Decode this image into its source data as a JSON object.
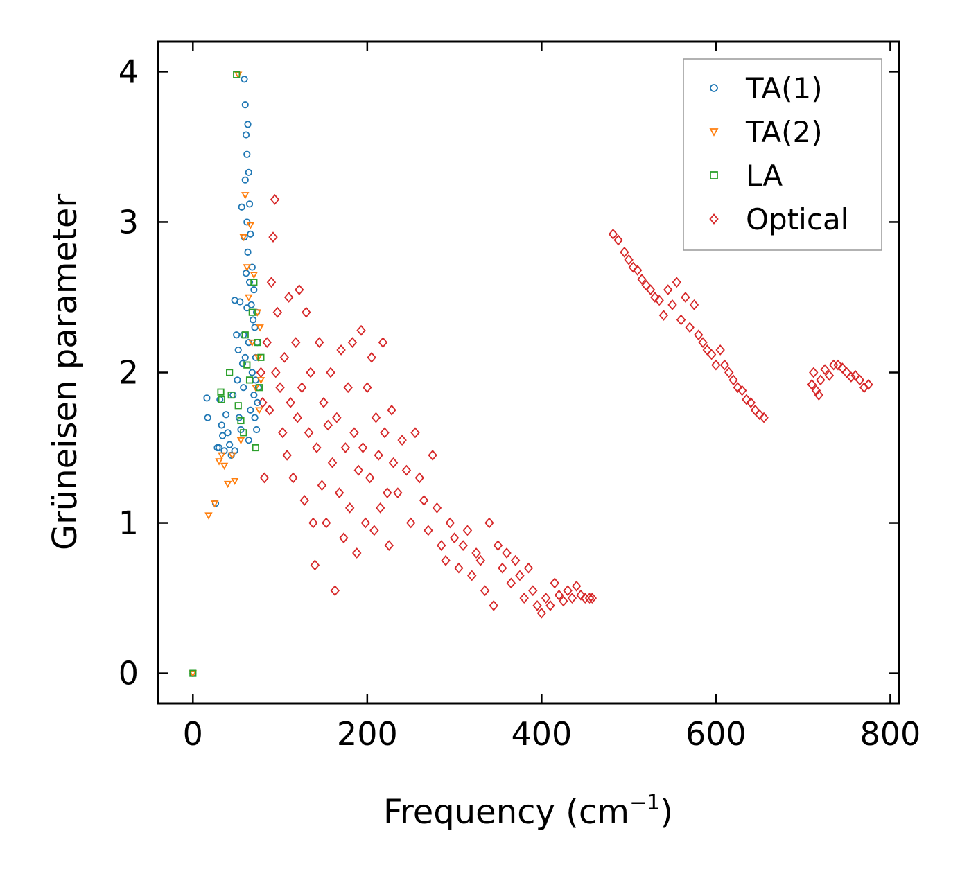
{
  "chart_data": {
    "type": "scatter",
    "title": "",
    "xlabel": "Frequency (cm",
    "xlabel_sup": "−1",
    "xlabel_close": ")",
    "ylabel": "Grüneisen parameter",
    "xlim": [
      -40,
      810
    ],
    "ylim": [
      -0.2,
      4.2
    ],
    "xticks": [
      0,
      200,
      400,
      600,
      800
    ],
    "xtick_labels": [
      "0",
      "200",
      "400",
      "600",
      "800"
    ],
    "yticks": [
      0,
      1,
      2,
      3,
      4
    ],
    "ytick_labels": [
      "0",
      "1",
      "2",
      "3",
      "4"
    ],
    "grid": false,
    "legend_position": "top-right",
    "series": [
      {
        "name": "TA(1)",
        "marker": "circle",
        "color": "#1f77b4",
        "x": [
          0,
          16,
          17,
          26,
          28,
          30,
          31,
          33,
          34,
          36,
          38,
          40,
          42,
          44,
          46,
          48,
          48,
          50,
          51,
          52,
          53,
          54,
          55,
          56,
          57,
          58,
          58,
          59,
          59,
          60,
          60,
          60,
          61,
          61,
          62,
          62,
          62,
          63,
          63,
          64,
          64,
          64,
          65,
          65,
          66,
          66,
          67,
          68,
          68,
          69,
          70,
          70,
          71,
          71,
          72,
          72,
          73,
          73,
          74,
          74,
          75
        ],
        "y": [
          0,
          1.83,
          1.7,
          1.13,
          1.5,
          1.5,
          1.82,
          1.65,
          1.58,
          1.48,
          1.72,
          1.6,
          1.52,
          1.45,
          1.85,
          2.48,
          1.48,
          2.25,
          1.95,
          2.15,
          1.7,
          2.47,
          1.62,
          3.1,
          2.06,
          2.25,
          1.9,
          3.95,
          2.9,
          3.78,
          3.28,
          2.1,
          3.58,
          2.66,
          3.45,
          3.0,
          2.43,
          3.65,
          2.8,
          3.33,
          2.2,
          1.55,
          3.12,
          2.6,
          2.92,
          1.75,
          2.45,
          2.7,
          2.0,
          2.35,
          1.85,
          2.55,
          1.7,
          2.3,
          1.95,
          2.1,
          1.62,
          2.4,
          1.8,
          2.2,
          1.9
        ]
      },
      {
        "name": "TA(2)",
        "marker": "triangle-down",
        "color": "#ff7f0e",
        "x": [
          0,
          18,
          25,
          30,
          33,
          36,
          40,
          45,
          48,
          52,
          55,
          58,
          60,
          62,
          64,
          66,
          68,
          70,
          72,
          74,
          75,
          76,
          77,
          78
        ],
        "y": [
          0,
          1.05,
          1.13,
          1.41,
          1.45,
          1.38,
          1.26,
          1.45,
          1.28,
          3.98,
          1.55,
          2.9,
          3.18,
          2.7,
          2.5,
          2.98,
          2.2,
          2.65,
          1.9,
          2.4,
          2.1,
          1.75,
          2.3,
          1.95
        ]
      },
      {
        "name": "LA",
        "marker": "square",
        "color": "#2ca02c",
        "x": [
          0,
          32,
          33,
          42,
          44,
          50,
          52,
          55,
          58,
          60,
          62,
          65,
          68,
          70,
          72,
          74,
          76,
          78
        ],
        "y": [
          0,
          1.87,
          1.82,
          2.0,
          1.85,
          3.98,
          1.78,
          1.68,
          1.6,
          2.25,
          2.05,
          1.95,
          2.4,
          2.6,
          1.5,
          2.2,
          1.9,
          2.1
        ]
      },
      {
        "name": "Optical",
        "marker": "diamond",
        "color": "#d62728",
        "x": [
          78,
          80,
          82,
          85,
          88,
          90,
          92,
          94,
          95,
          97,
          100,
          103,
          105,
          108,
          110,
          112,
          115,
          118,
          120,
          122,
          125,
          128,
          130,
          133,
          135,
          138,
          140,
          142,
          145,
          148,
          150,
          153,
          155,
          158,
          160,
          163,
          165,
          168,
          170,
          173,
          175,
          178,
          180,
          183,
          185,
          188,
          190,
          193,
          195,
          198,
          200,
          203,
          205,
          208,
          210,
          213,
          215,
          218,
          220,
          223,
          225,
          228,
          230,
          235,
          240,
          245,
          250,
          255,
          260,
          265,
          270,
          275,
          280,
          285,
          290,
          295,
          300,
          305,
          310,
          315,
          320,
          325,
          330,
          335,
          340,
          345,
          350,
          355,
          360,
          365,
          370,
          375,
          380,
          385,
          390,
          395,
          400,
          405,
          410,
          415,
          420,
          425,
          430,
          435,
          440,
          445,
          450,
          455,
          458,
          482,
          488,
          495,
          500,
          505,
          510,
          515,
          520,
          525,
          530,
          535,
          540,
          545,
          550,
          555,
          560,
          565,
          570,
          575,
          580,
          585,
          590,
          595,
          600,
          605,
          610,
          615,
          620,
          625,
          630,
          635,
          640,
          645,
          650,
          655,
          710,
          712,
          715,
          718,
          720,
          725,
          730,
          735,
          740,
          745,
          750,
          755,
          760,
          765,
          770,
          775
        ],
        "y": [
          2.0,
          1.8,
          1.3,
          2.2,
          1.75,
          2.6,
          2.9,
          3.15,
          2.0,
          2.4,
          1.9,
          1.6,
          2.1,
          1.45,
          2.5,
          1.8,
          1.3,
          2.2,
          1.7,
          2.55,
          1.9,
          1.15,
          2.4,
          1.6,
          2.0,
          1.0,
          0.72,
          1.5,
          2.2,
          1.25,
          1.8,
          1.0,
          1.65,
          2.0,
          1.4,
          0.55,
          1.7,
          1.2,
          2.15,
          0.9,
          1.5,
          1.9,
          1.1,
          2.2,
          1.6,
          0.8,
          1.35,
          2.28,
          1.5,
          1.0,
          1.9,
          1.3,
          2.1,
          0.95,
          1.7,
          1.45,
          1.1,
          2.2,
          1.6,
          1.2,
          0.85,
          1.75,
          1.4,
          1.2,
          1.55,
          1.35,
          1.0,
          1.6,
          1.3,
          1.15,
          0.95,
          1.45,
          1.1,
          0.85,
          0.75,
          1.0,
          0.9,
          0.7,
          0.85,
          0.95,
          0.65,
          0.8,
          0.75,
          0.55,
          1.0,
          0.45,
          0.85,
          0.7,
          0.8,
          0.6,
          0.75,
          0.65,
          0.5,
          0.7,
          0.55,
          0.45,
          0.4,
          0.5,
          0.45,
          0.6,
          0.52,
          0.48,
          0.55,
          0.5,
          0.58,
          0.52,
          0.5,
          0.5,
          0.5,
          2.92,
          2.88,
          2.8,
          2.75,
          2.7,
          2.68,
          2.62,
          2.58,
          2.55,
          2.5,
          2.48,
          2.38,
          2.55,
          2.45,
          2.6,
          2.35,
          2.5,
          2.3,
          2.45,
          2.25,
          2.2,
          2.15,
          2.12,
          2.05,
          2.15,
          2.05,
          2.0,
          1.95,
          1.9,
          1.88,
          1.82,
          1.8,
          1.75,
          1.72,
          1.7,
          1.92,
          2.0,
          1.88,
          1.85,
          1.95,
          2.02,
          1.98,
          2.05,
          2.05,
          2.03,
          2.0,
          1.97,
          1.98,
          1.95,
          1.9,
          1.92
        ]
      }
    ]
  }
}
